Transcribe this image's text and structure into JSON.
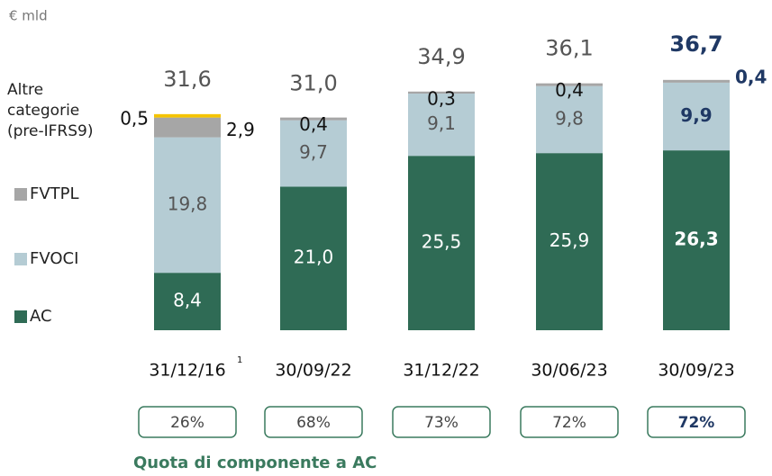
{
  "chart_data": {
    "type": "bar",
    "stacked": true,
    "unit_label": "€ mld",
    "categories": [
      "31/12/16",
      "30/09/22",
      "31/12/22",
      "30/06/23",
      "30/09/23"
    ],
    "category_note": {
      "index": 0,
      "label": "1"
    },
    "series": [
      {
        "name": "AC",
        "color": "#2f6b55",
        "values": [
          8.4,
          21.0,
          25.5,
          25.9,
          26.3
        ],
        "value_labels": [
          "8,4",
          "21,0",
          "25,5",
          "25,9",
          "26,3"
        ]
      },
      {
        "name": "FVOCI",
        "color": "#b5ccd4",
        "values": [
          19.8,
          9.7,
          9.1,
          9.8,
          9.9
        ],
        "value_labels": [
          "19,8",
          "9,7",
          "9,1",
          "9,8",
          "9,9"
        ]
      },
      {
        "name": "FVTPL",
        "color": "#a6a6a6",
        "values": [
          2.9,
          0.4,
          0.3,
          0.4,
          0.4
        ],
        "value_labels": [
          "2,9",
          "0,4",
          "0,3",
          "0,4",
          "0,4"
        ]
      },
      {
        "name": "Altre categorie (pre-IFRS9)",
        "color": "#f5c400",
        "values": [
          0.5,
          null,
          null,
          null,
          null
        ],
        "value_labels": [
          "0,5",
          null,
          null,
          null,
          null
        ]
      }
    ],
    "totals": [
      31.6,
      31.0,
      34.9,
      36.1,
      36.7
    ],
    "total_labels": [
      "31,6",
      "31,0",
      "34,9",
      "36,1",
      "36,7"
    ],
    "shares": [
      26,
      68,
      73,
      72,
      72
    ],
    "share_labels": [
      "26%",
      "68%",
      "73%",
      "72%",
      "72%"
    ],
    "share_title": "Quota di componente a AC",
    "highlight_index": 4,
    "ylim": [
      0,
      40
    ]
  }
}
